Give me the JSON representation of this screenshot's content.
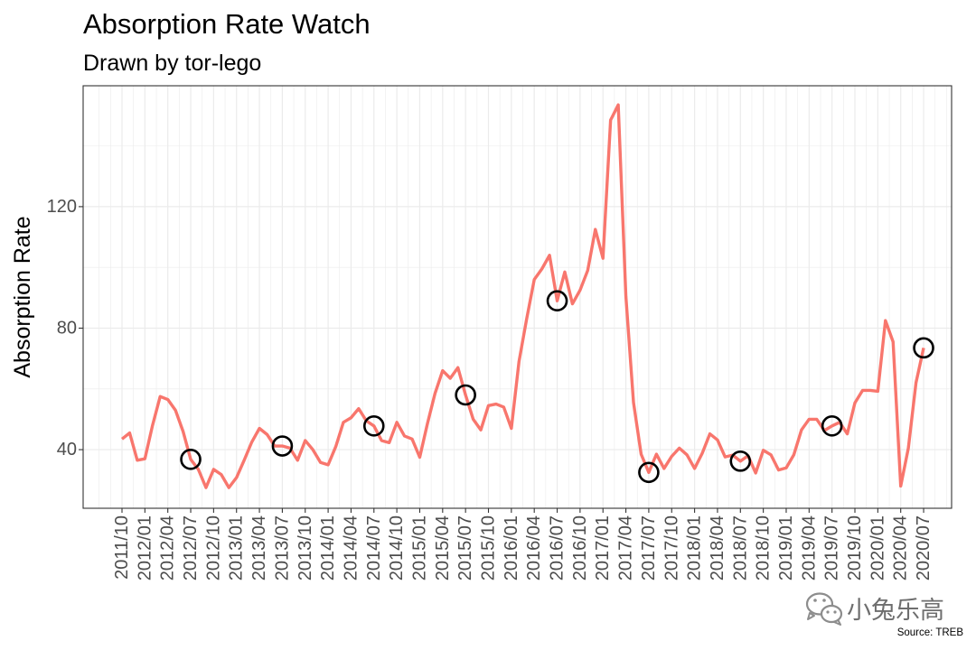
{
  "chart_data": {
    "type": "line",
    "title": "Absorption Rate Watch",
    "subtitle": "Drawn by tor-lego",
    "xlabel": "",
    "ylabel": "Absorption Rate",
    "x_start": {
      "year": 2011,
      "month": 10
    },
    "x_step_months": 1,
    "series": [
      {
        "values": [
          43.5,
          45.5,
          36.5,
          37,
          48,
          57.5,
          56.5,
          53,
          46,
          36.8,
          33.5,
          27.5,
          33.5,
          31.8,
          27.5,
          30.8,
          36.5,
          42.5,
          47,
          45,
          41.2,
          41.2,
          40.5,
          36.5,
          43,
          40,
          35.8,
          35,
          41,
          49,
          50.5,
          53.5,
          49.5,
          47.8,
          43,
          42.3,
          49,
          44.5,
          43.5,
          37.5,
          48.5,
          58.5,
          66,
          63.5,
          67,
          58,
          50,
          46.5,
          54.5,
          55,
          54,
          47,
          69,
          83,
          96,
          99.5,
          104,
          89,
          98.5,
          88,
          92.5,
          99,
          112.5,
          103,
          148.5,
          153.5,
          90.5,
          55.5,
          38.5,
          32.5,
          38.5,
          33.8,
          37.8,
          40.5,
          38.3,
          33.8,
          38.8,
          45.2,
          43.2,
          37.6,
          38.2,
          36.2,
          38,
          32.3,
          39.8,
          38.3,
          33.3,
          34,
          38.3,
          46.5,
          50,
          50,
          46.3,
          47.8,
          49,
          45.2,
          55.4,
          59.5,
          59.5,
          59.2,
          82.5,
          75.5,
          28,
          40.5,
          62,
          73.5
        ]
      }
    ],
    "highlighted": [
      {
        "year": 2012,
        "month": 7
      },
      {
        "year": 2013,
        "month": 7
      },
      {
        "year": 2014,
        "month": 7
      },
      {
        "year": 2015,
        "month": 7
      },
      {
        "year": 2016,
        "month": 7
      },
      {
        "year": 2017,
        "month": 7
      },
      {
        "year": 2018,
        "month": 7
      },
      {
        "year": 2019,
        "month": 7
      },
      {
        "year": 2020,
        "month": 7
      }
    ],
    "x_ticks": [
      "2011/10",
      "2012/01",
      "2012/04",
      "2012/07",
      "2012/10",
      "2013/01",
      "2013/04",
      "2013/07",
      "2013/10",
      "2014/01",
      "2014/04",
      "2014/07",
      "2014/10",
      "2015/01",
      "2015/04",
      "2015/07",
      "2015/10",
      "2016/01",
      "2016/04",
      "2016/07",
      "2016/10",
      "2017/01",
      "2017/04",
      "2017/07",
      "2017/10",
      "2018/01",
      "2018/04",
      "2018/07",
      "2018/10",
      "2019/01",
      "2019/04",
      "2019/07",
      "2019/10",
      "2020/01",
      "2020/04",
      "2020/07"
    ],
    "y_ticks": [
      40,
      80,
      120
    ],
    "ylim": [
      20.7,
      159.8
    ],
    "grid": true,
    "caption": "Source: TREB"
  },
  "watermark": {
    "icon": "wechat-icon",
    "text": "小兔乐高"
  },
  "colors": {
    "line": "#F8766D",
    "highlight": "#000000",
    "panel_border": "#333333",
    "grid": "#EBEBEB",
    "axis_text": "#4D4D4D",
    "watermark": "#6E6E6E"
  }
}
